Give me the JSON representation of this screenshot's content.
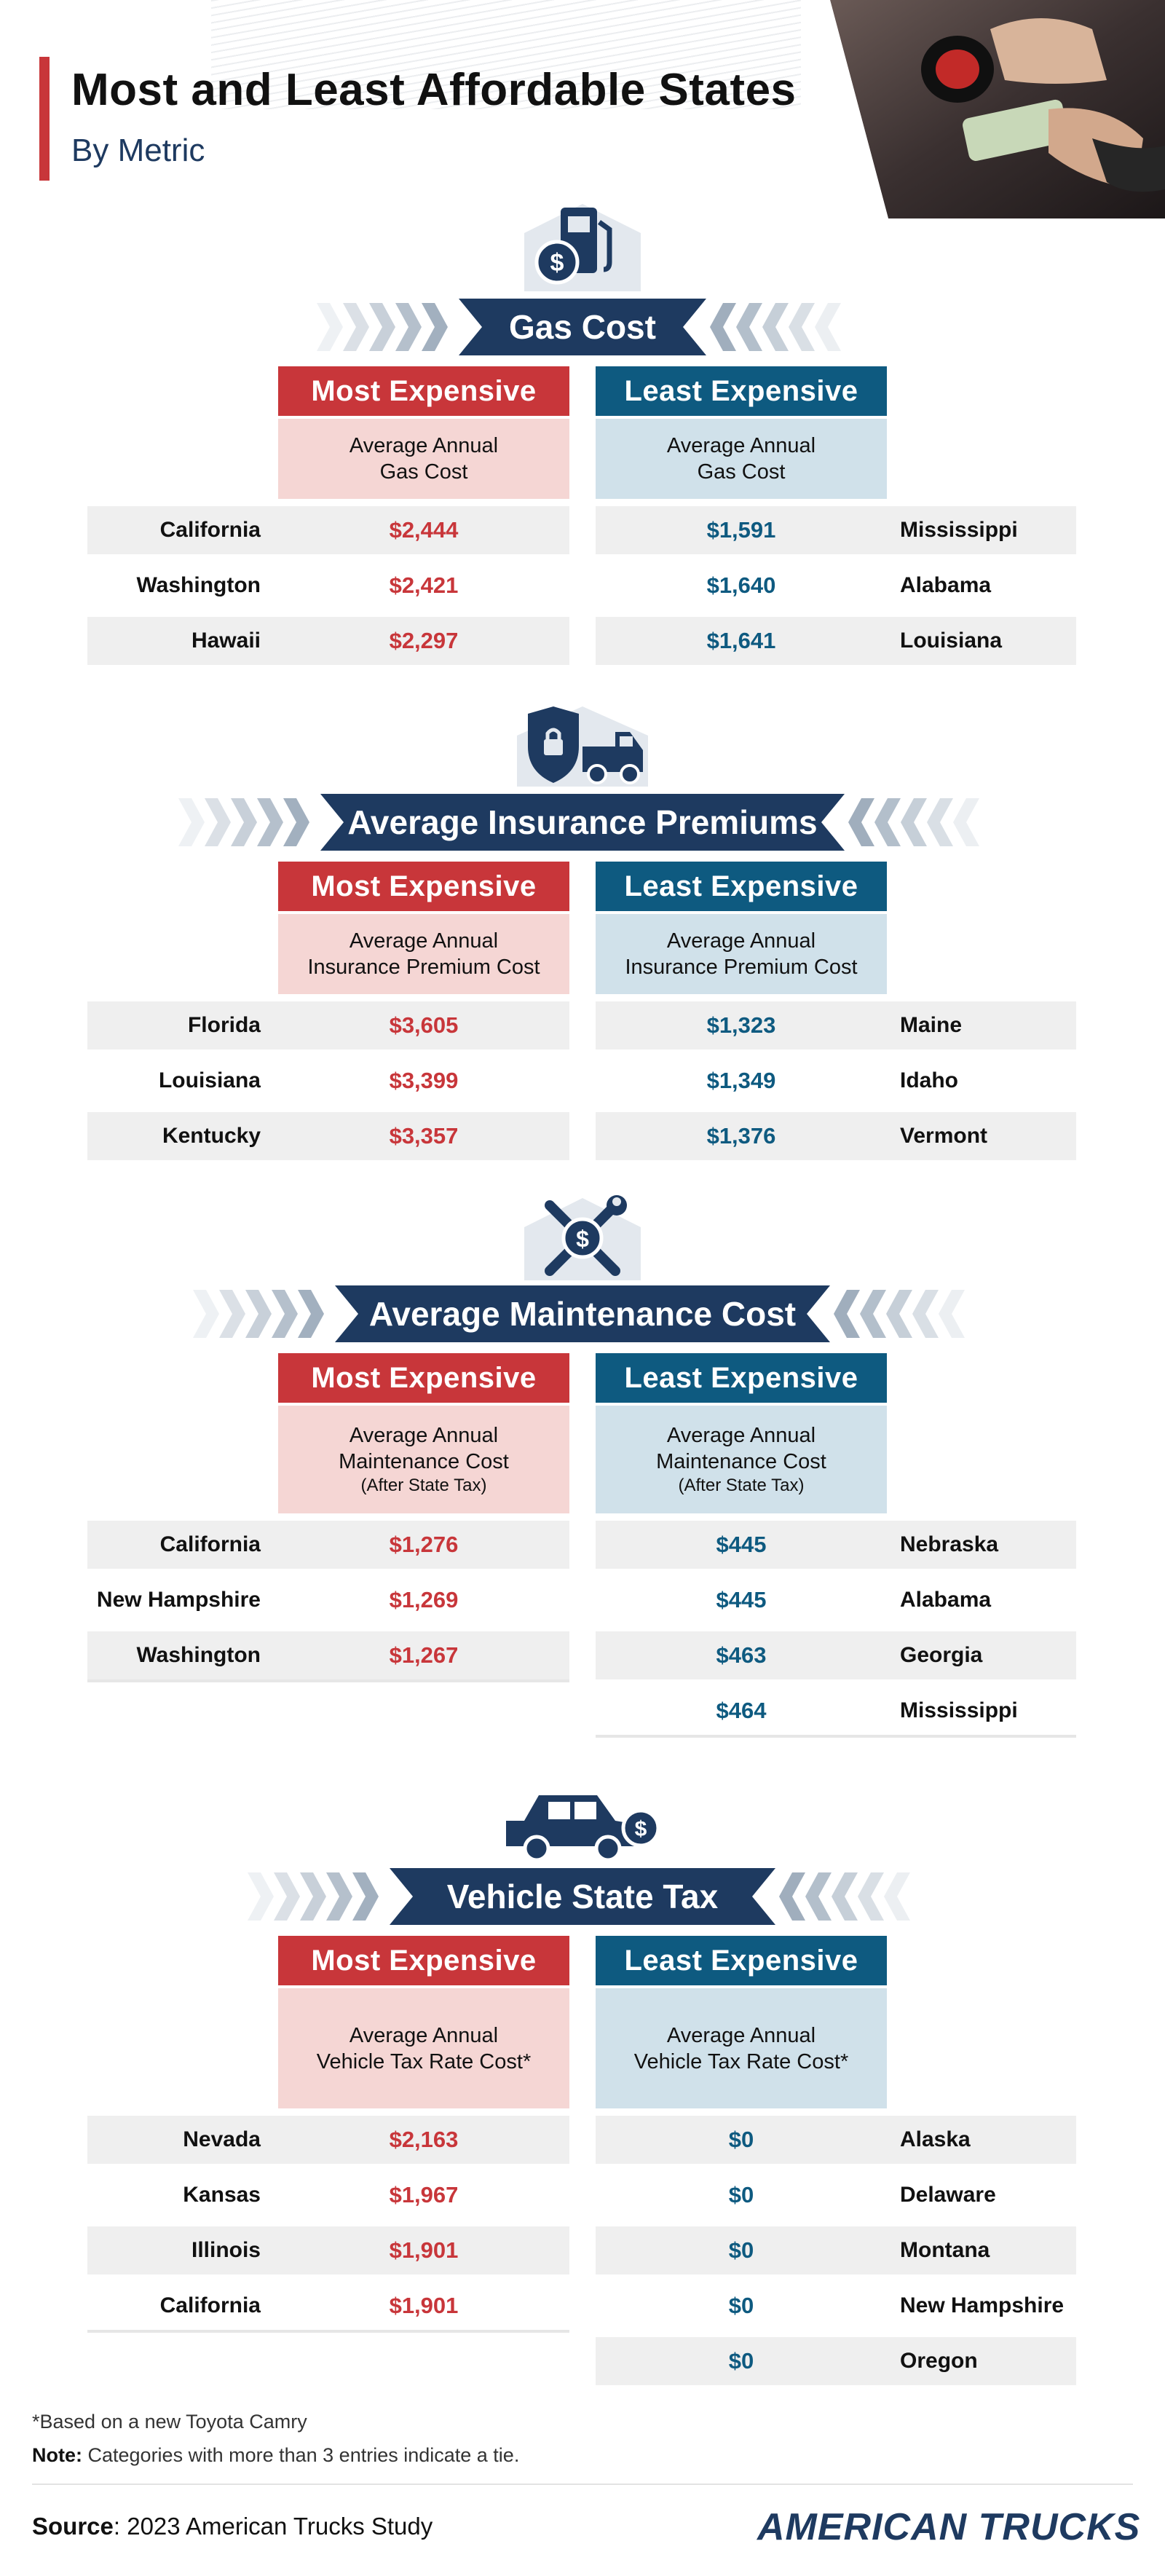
{
  "header": {
    "title": "Most and Least Affordable States",
    "subtitle": "By Metric"
  },
  "labels": {
    "most": "Most Expensive",
    "least": "Least Expensive"
  },
  "sections": [
    {
      "title": "Gas Cost",
      "icon": "gas-pump-icon",
      "most_desc": [
        "Average Annual",
        "Gas Cost"
      ],
      "least_desc": [
        "Average Annual",
        "Gas Cost"
      ],
      "most": [
        {
          "state": "California",
          "value": "$2,444"
        },
        {
          "state": "Washington",
          "value": "$2,421"
        },
        {
          "state": "Hawaii",
          "value": "$2,297"
        }
      ],
      "least": [
        {
          "state": "Mississippi",
          "value": "$1,591"
        },
        {
          "state": "Alabama",
          "value": "$1,640"
        },
        {
          "state": "Louisiana",
          "value": "$1,641"
        }
      ]
    },
    {
      "title": "Average Insurance Premiums",
      "icon": "insurance-truck-icon",
      "most_desc": [
        "Average Annual",
        "Insurance Premium Cost"
      ],
      "least_desc": [
        "Average Annual",
        "Insurance Premium Cost"
      ],
      "most": [
        {
          "state": "Florida",
          "value": "$3,605"
        },
        {
          "state": "Louisiana",
          "value": "$3,399"
        },
        {
          "state": "Kentucky",
          "value": "$3,357"
        }
      ],
      "least": [
        {
          "state": "Maine",
          "value": "$1,323"
        },
        {
          "state": "Idaho",
          "value": "$1,349"
        },
        {
          "state": "Vermont",
          "value": "$1,376"
        }
      ]
    },
    {
      "title": "Average Maintenance Cost",
      "icon": "wrench-screwdriver-icon",
      "most_desc": [
        "Average Annual",
        "Maintenance Cost",
        "(After State Tax)"
      ],
      "least_desc": [
        "Average Annual",
        "Maintenance Cost",
        "(After State Tax)"
      ],
      "most": [
        {
          "state": "California",
          "value": "$1,276"
        },
        {
          "state": "New Hampshire",
          "value": "$1,269"
        },
        {
          "state": "Washington",
          "value": "$1,267"
        }
      ],
      "least": [
        {
          "state": "Nebraska",
          "value": "$445"
        },
        {
          "state": "Alabama",
          "value": "$445"
        },
        {
          "state": "Georgia",
          "value": "$463"
        },
        {
          "state": "Mississippi",
          "value": "$464"
        }
      ]
    },
    {
      "title": "Vehicle State Tax",
      "icon": "car-dollar-icon",
      "most_desc": [
        "Average Annual",
        "Vehicle Tax Rate Cost*"
      ],
      "least_desc": [
        "Average Annual",
        "Vehicle Tax Rate Cost*"
      ],
      "most": [
        {
          "state": "Nevada",
          "value": "$2,163"
        },
        {
          "state": "Kansas",
          "value": "$1,967"
        },
        {
          "state": "Illinois",
          "value": "$1,901"
        },
        {
          "state": "California",
          "value": "$1,901"
        }
      ],
      "least": [
        {
          "state": "Alaska",
          "value": "$0"
        },
        {
          "state": "Delaware",
          "value": "$0"
        },
        {
          "state": "Montana",
          "value": "$0"
        },
        {
          "state": "New Hampshire",
          "value": "$0"
        },
        {
          "state": "Oregon",
          "value": "$0"
        }
      ]
    }
  ],
  "footer": {
    "footnote": "*Based on a new Toyota Camry",
    "note_label": "Note:",
    "note_text": " Categories with more than 3 entries indicate a tie.",
    "source_label": "Source",
    "source_text": ": 2023 American Trucks Study",
    "logo": "AMERICAN TRUCKS"
  },
  "colors": {
    "red": "#c8363a",
    "blue": "#0e5a80",
    "navy": "#1e3a60",
    "pink": "#f5d6d4",
    "lightblue": "#d0e1ea",
    "rowgray": "#efefef"
  }
}
